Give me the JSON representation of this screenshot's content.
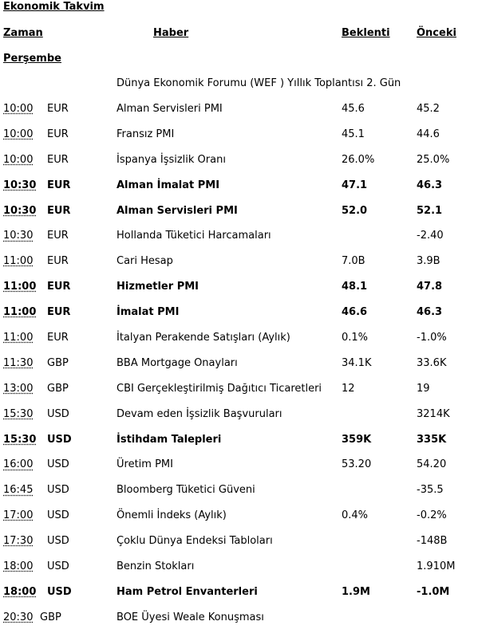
{
  "title": "Ekonomik Takvim",
  "headers": {
    "time": "Zaman",
    "event": "Haber",
    "expected": "Beklenti",
    "previous": "Önceki"
  },
  "day": "Perşembe",
  "wef": "Dünya Ekonomik Forumu (WEF ) Yıllık Toplantısı  2. Gün",
  "rows": [
    {
      "time": "10:00",
      "cur": "EUR",
      "event": "Alman Servisleri PMI",
      "expected": "45.6",
      "previous": "45.2",
      "bold": false
    },
    {
      "time": "10:00",
      "cur": "EUR",
      "event": "Fransız PMI",
      "expected": "45.1",
      "previous": "44.6",
      "bold": false
    },
    {
      "time": "10:00",
      "cur": "EUR",
      "event": "İspanya İşsizlik Oranı",
      "expected": "26.0%",
      "previous": "25.0%",
      "bold": false
    },
    {
      "time": "10:30",
      "cur": "EUR",
      "event": "Alman İmalat PMI",
      "expected": "47.1",
      "previous": "46.3",
      "bold": true
    },
    {
      "time": "10:30",
      "cur": "EUR",
      "event": "Alman Servisleri PMI",
      "expected": "52.0",
      "previous": "52.1",
      "bold": true
    },
    {
      "time": "10:30",
      "cur": "EUR",
      "event": "Hollanda Tüketici Harcamaları",
      "expected": "",
      "previous": "-2.40",
      "bold": false
    },
    {
      "time": "11:00",
      "cur": "EUR",
      "event": "Cari Hesap",
      "expected": "7.0B",
      "previous": "3.9B",
      "bold": false
    },
    {
      "time": "11:00",
      "cur": "EUR",
      "event": "Hizmetler PMI",
      "expected": "48.1",
      "previous": "47.8",
      "bold": true
    },
    {
      "time": "11:00",
      "cur": "EUR",
      "event": "İmalat PMI",
      "expected": "46.6",
      "previous": "46.3",
      "bold": true
    },
    {
      "time": "11:00",
      "cur": "EUR",
      "event": "İtalyan Perakende Satışları (Aylık)",
      "expected": "0.1%",
      "previous": "-1.0%",
      "bold": false
    },
    {
      "time": "11:30",
      "cur": "GBP",
      "event": "BBA Mortgage Onayları",
      "expected": "34.1K",
      "previous": "33.6K",
      "bold": false
    },
    {
      "time": "13:00",
      "cur": "GBP",
      "event": "CBI Gerçekleştirilmiş  Dağıtıcı  Ticaretleri",
      "expected": " 12",
      "previous": "19",
      "bold": false
    },
    {
      "time": "15:30",
      "cur": "USD",
      "event": "Devam eden İşsizlik  Başvuruları",
      "expected": "",
      "previous": "3214K",
      "bold": false
    },
    {
      "time": "15:30",
      "cur": "USD",
      "event": "İstihdam Talepleri",
      "expected": "359K",
      "previous": "335K",
      "bold": true
    },
    {
      "time": "16:00",
      "cur": "USD",
      "event": "Üretim PMI",
      "expected": "53.20",
      "previous": "54.20",
      "bold": false
    },
    {
      "time": "16:45",
      "cur": "USD",
      "event": "Bloomberg Tüketici  Güveni",
      "expected": "",
      "previous": "-35.5",
      "bold": false
    },
    {
      "time": "17:00",
      "cur": "USD",
      "event": "Önemli İndeks  (Aylık)",
      "expected": "0.4%",
      "previous": "-0.2%",
      "bold": false
    },
    {
      "time": "17:30",
      "cur": "USD",
      "event": "Çoklu Dünya Endeksi Tabloları",
      "expected": "",
      "previous": "-148B",
      "bold": false
    },
    {
      "time": "18:00",
      "cur": "USD",
      "event": "Benzin Stokları",
      "expected": "",
      "previous": "1.910M",
      "bold": false
    },
    {
      "time": "18:00",
      "cur": "USD",
      "event": "Ham Petrol Envanterleri",
      "expected": "1.9M",
      "previous": "-1.0M",
      "bold": true
    },
    {
      "time": "20:30",
      "cur": "GBP",
      "event": "BOE Üyesi Weale Konuşması",
      "expected": "",
      "previous": "",
      "bold": false
    }
  ]
}
